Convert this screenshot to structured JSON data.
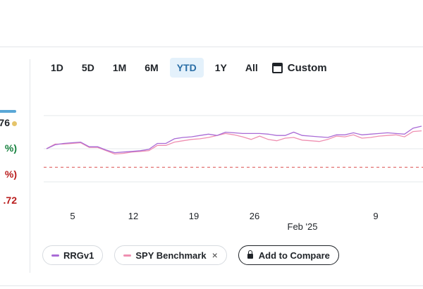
{
  "left_panel": {
    "values": [
      "76",
      "%)",
      "%)",
      ".72"
    ],
    "colors": {
      "neutral": "#1f2328",
      "positive": "#15803d",
      "negative": "#b91c1c",
      "accent_bar": "#5aa7d6",
      "dot": "#e5c46a"
    }
  },
  "ranges": {
    "items": [
      "1D",
      "5D",
      "1M",
      "6M",
      "YTD",
      "1Y",
      "All"
    ],
    "active": "YTD",
    "custom_label": "Custom",
    "custom_icon": "calendar-icon"
  },
  "legend": {
    "items": [
      {
        "label": "RRGv1",
        "color": "#a96bd6",
        "removable": false
      },
      {
        "label": "SPY Benchmark",
        "color": "#ef8fb1",
        "removable": true,
        "remove_glyph": "×"
      }
    ],
    "compare_label": "Add to Compare",
    "compare_icon": "lock-icon"
  },
  "chart_data": {
    "type": "line",
    "x_tick_labels": [
      "5",
      "12",
      "19",
      "26",
      "9"
    ],
    "month_label": "Feb '25",
    "series": [
      {
        "name": "RRGv1",
        "color": "#a96bd6",
        "values": [
          50,
          56,
          58,
          59,
          60,
          53,
          53,
          48,
          44,
          45,
          46,
          47,
          49,
          58,
          58,
          65,
          67,
          68,
          70,
          72,
          70,
          75,
          74,
          73,
          73,
          73,
          72,
          70,
          70,
          75,
          70,
          69,
          68,
          67,
          71,
          71,
          74,
          71,
          72,
          73,
          74,
          73,
          72,
          81,
          84
        ]
      },
      {
        "name": "SPY Benchmark",
        "color": "#ef8fb1",
        "values": [
          50,
          57,
          57,
          58,
          59,
          52,
          52,
          47,
          42,
          43,
          45,
          46,
          47,
          55,
          55,
          60,
          62,
          64,
          65,
          67,
          70,
          73,
          71,
          68,
          64,
          69,
          64,
          62,
          66,
          67,
          63,
          62,
          61,
          64,
          69,
          68,
          71,
          66,
          67,
          69,
          70,
          71,
          68,
          76,
          77
        ]
      }
    ],
    "reference_line": {
      "style": "dashed",
      "color": "#e06464",
      "value": 22
    },
    "ylim": [
      0,
      100
    ],
    "grid": true
  }
}
